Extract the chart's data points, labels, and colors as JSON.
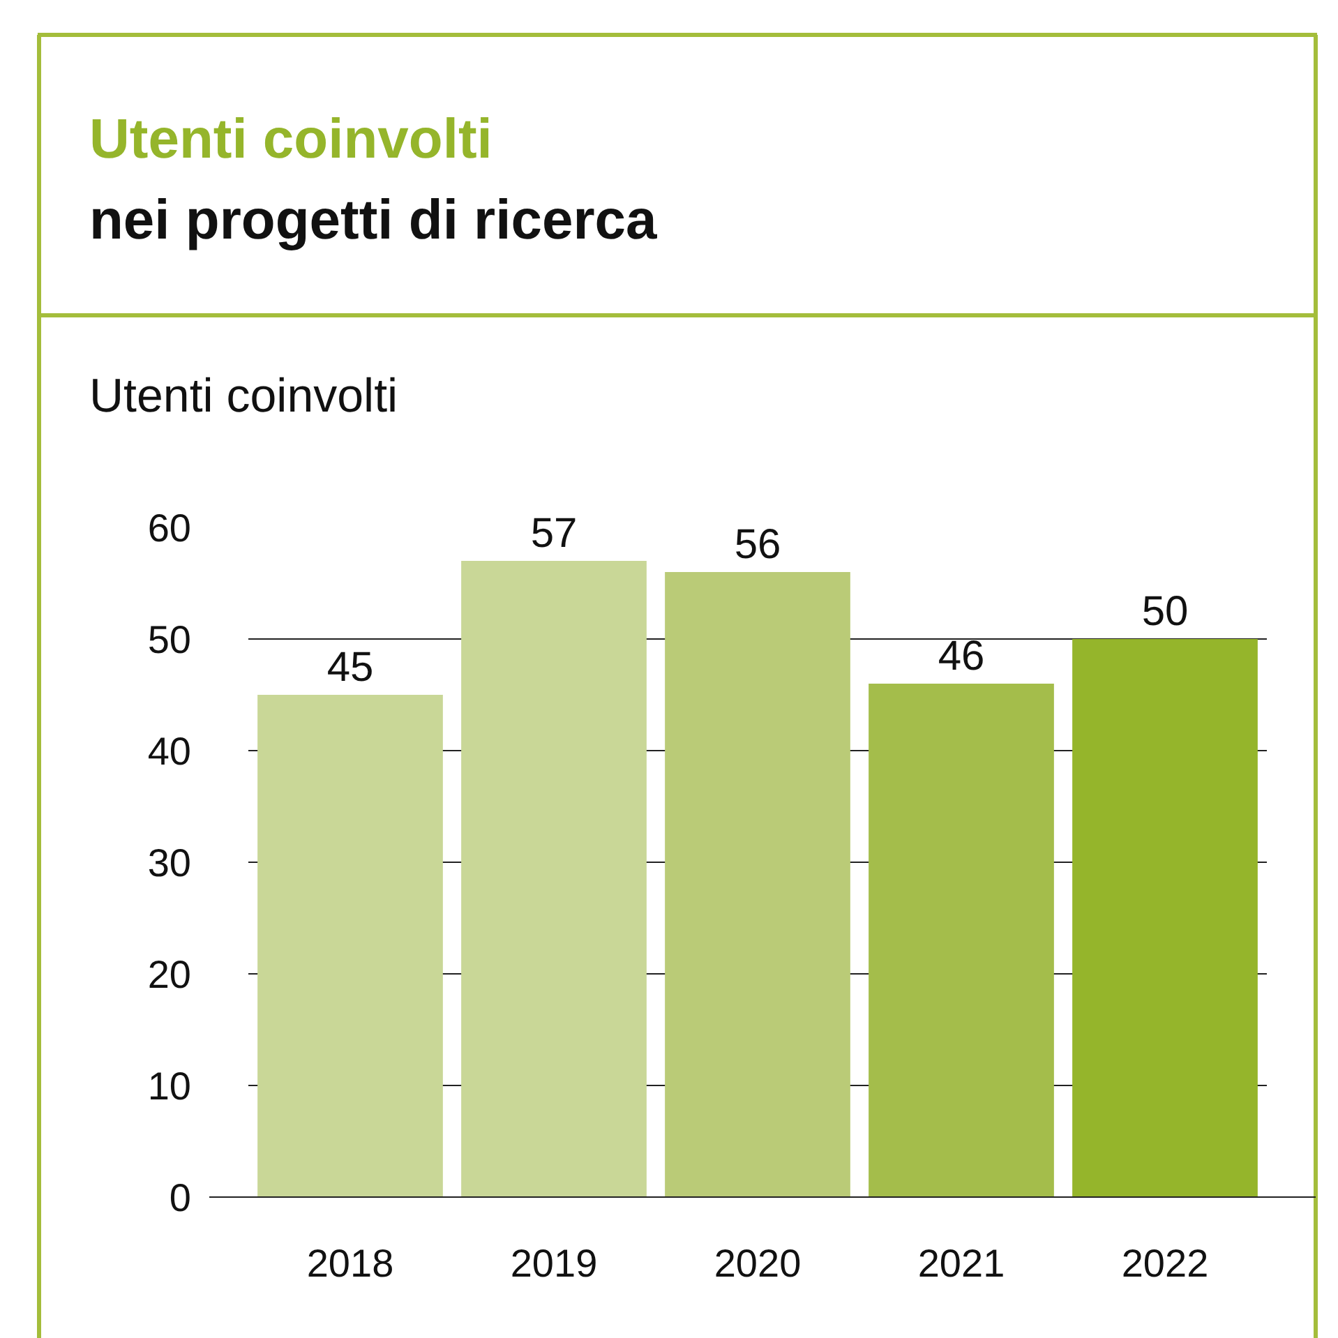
{
  "chart_data": {
    "type": "bar",
    "title": "Utenti coinvolti",
    "subtitle": "nei progetti di ricerca",
    "ylabel": "Utenti coinvolti",
    "categories": [
      "2018",
      "2019",
      "2020",
      "2021",
      "2022"
    ],
    "values": [
      45,
      57,
      56,
      46,
      50
    ],
    "colors": [
      "#c9d797",
      "#c9d797",
      "#bacb77",
      "#a4bd4b",
      "#95b52b"
    ],
    "ylim": [
      0,
      60
    ],
    "yticks": [
      0,
      10,
      20,
      30,
      40,
      50,
      60
    ],
    "grid": "y",
    "data_labels": true,
    "legend": false
  }
}
